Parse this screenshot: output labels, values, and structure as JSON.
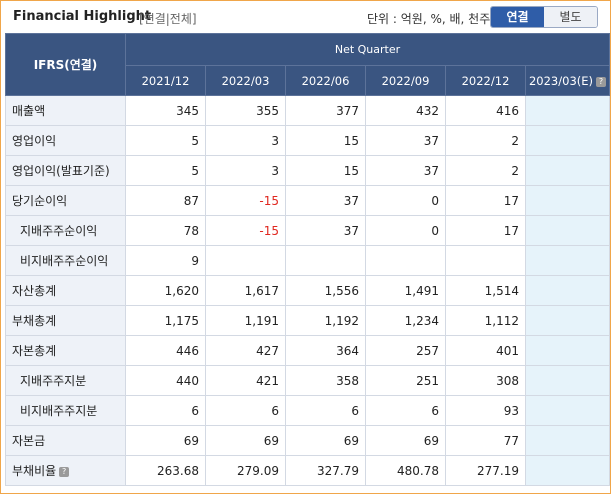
{
  "header": {
    "title": "Financial Highlight",
    "subtitle": "[연결|전체]",
    "unit_label": "단위 : 억원, %, 배, 천주",
    "toggle": {
      "consolidated": "연결",
      "separate": "별도"
    }
  },
  "table": {
    "corner_label": "IFRS(연결)",
    "group_label": "Net Quarter",
    "periods": [
      "2021/12",
      "2022/03",
      "2022/06",
      "2022/09",
      "2022/12",
      "2023/03(E)"
    ],
    "rows": [
      {
        "label": "매출액",
        "values": [
          "345",
          "355",
          "377",
          "432",
          "416",
          ""
        ]
      },
      {
        "label": "영업이익",
        "values": [
          "5",
          "3",
          "15",
          "37",
          "2",
          ""
        ]
      },
      {
        "label": "영업이익(발표기준)",
        "values": [
          "5",
          "3",
          "15",
          "37",
          "2",
          ""
        ]
      },
      {
        "label": "당기순이익",
        "values": [
          "87",
          "-15",
          "37",
          "0",
          "17",
          ""
        ]
      },
      {
        "label": "지배주주순이익",
        "values": [
          "78",
          "-15",
          "37",
          "0",
          "17",
          ""
        ]
      },
      {
        "label": "비지배주주순이익",
        "values": [
          "9",
          "",
          "",
          "",
          "",
          ""
        ]
      },
      {
        "label": "자산총계",
        "values": [
          "1,620",
          "1,617",
          "1,556",
          "1,491",
          "1,514",
          ""
        ]
      },
      {
        "label": "부채총계",
        "values": [
          "1,175",
          "1,191",
          "1,192",
          "1,234",
          "1,112",
          ""
        ]
      },
      {
        "label": "자본총계",
        "values": [
          "446",
          "427",
          "364",
          "257",
          "401",
          ""
        ]
      },
      {
        "label": "지배주주지분",
        "values": [
          "440",
          "421",
          "358",
          "251",
          "308",
          ""
        ]
      },
      {
        "label": "비지배주주지분",
        "values": [
          "6",
          "6",
          "6",
          "6",
          "93",
          ""
        ]
      },
      {
        "label": "자본금",
        "values": [
          "69",
          "69",
          "69",
          "69",
          "77",
          ""
        ]
      },
      {
        "label": "부채비율",
        "values": [
          "263.68",
          "279.09",
          "327.79",
          "480.78",
          "277.19",
          ""
        ]
      }
    ]
  },
  "colors": {
    "header_bg": "#3a5581",
    "negative": "#e0271f",
    "estimate_bg": "#e6f3fa",
    "frame": "#f0a64a"
  }
}
